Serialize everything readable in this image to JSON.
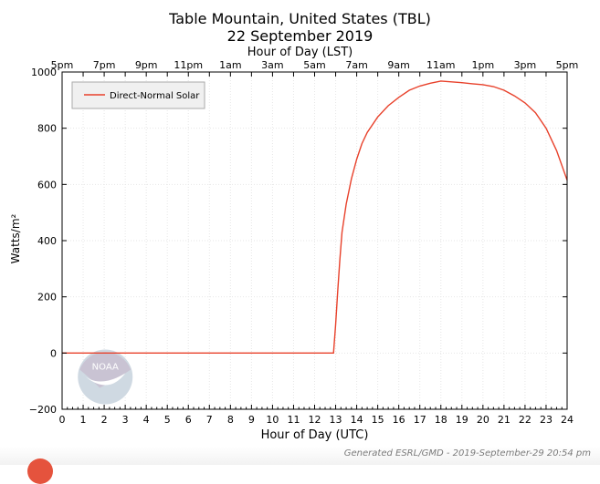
{
  "chart_data": {
    "type": "line",
    "title": "Table Mountain, United States (TBL)",
    "subtitle": "22 September 2019",
    "xlabel": "Hour of Day (UTC)",
    "x2label": "Hour of Day (LST)",
    "ylabel": "Watts/m²",
    "xlim": [
      0,
      24
    ],
    "ylim": [
      -200,
      1000
    ],
    "x_ticks": [
      0,
      1,
      2,
      3,
      4,
      5,
      6,
      7,
      8,
      9,
      10,
      11,
      12,
      13,
      14,
      15,
      16,
      17,
      18,
      19,
      20,
      21,
      22,
      23,
      24
    ],
    "y_ticks": [
      -200,
      0,
      200,
      400,
      600,
      800,
      1000
    ],
    "x2_tick_labels": [
      "5pm",
      "7pm",
      "9pm",
      "11pm",
      "1am",
      "3am",
      "5am",
      "7am",
      "9am",
      "11am",
      "1pm",
      "3pm",
      "5pm"
    ],
    "grid": true,
    "legend_position": "top-left",
    "series": [
      {
        "name": "Direct-Normal Solar",
        "color": "#e8412b",
        "x": [
          0,
          12.9,
          13.0,
          13.1,
          13.2,
          13.3,
          13.5,
          13.75,
          14.0,
          14.25,
          14.5,
          15.0,
          15.5,
          16.0,
          16.5,
          17.0,
          17.5,
          18.0,
          18.5,
          19.0,
          19.5,
          20.0,
          20.5,
          21.0,
          21.5,
          22.0,
          22.5,
          23.0,
          23.5,
          24.0
        ],
        "y": [
          0,
          0,
          100,
          220,
          330,
          430,
          530,
          620,
          690,
          745,
          785,
          840,
          880,
          910,
          935,
          950,
          960,
          968,
          965,
          962,
          958,
          955,
          948,
          935,
          915,
          890,
          855,
          800,
          720,
          615
        ]
      }
    ]
  },
  "footer": {
    "generated": "Generated ESRL/GMD - 2019-September-29 20:54 pm"
  },
  "logo": {
    "text": "NOAA"
  },
  "colors": {
    "series": "#e8412b",
    "grid": "#e6e6e6",
    "logo": "#cfd9e2"
  }
}
